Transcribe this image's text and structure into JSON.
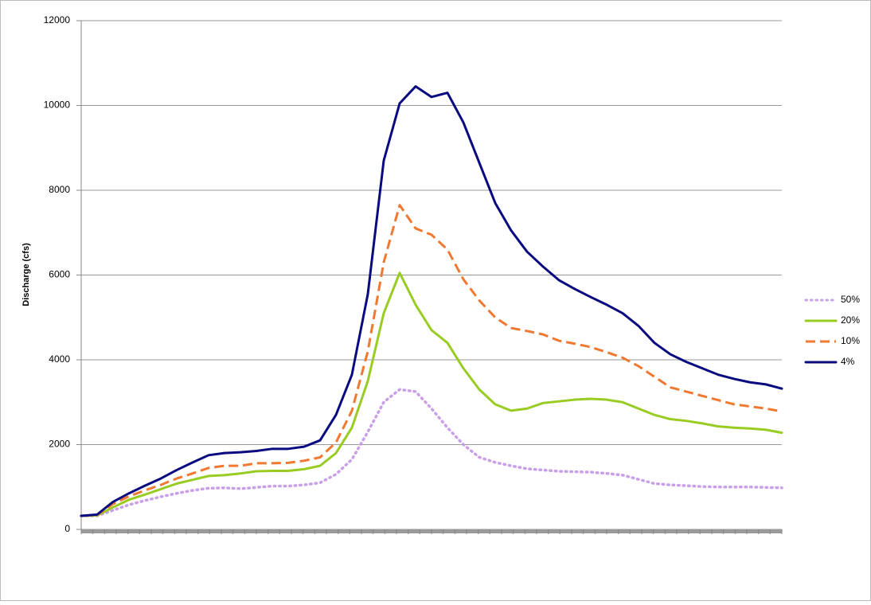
{
  "chart_data": {
    "type": "line",
    "y_label": "Discharge (cfs)",
    "categories": [
      null,
      null,
      null,
      null,
      null,
      null,
      null,
      null,
      null,
      null,
      null,
      null,
      null,
      null,
      null,
      null,
      null,
      null,
      null,
      null,
      null,
      null,
      null,
      null,
      null,
      null,
      null,
      null,
      null,
      null,
      null,
      null,
      null,
      null,
      null,
      null,
      null,
      null,
      null,
      null,
      null,
      null,
      null,
      null,
      null
    ],
    "ylim": [
      0,
      12000
    ],
    "yticks": [
      0,
      2000,
      4000,
      6000,
      8000,
      10000,
      12000
    ],
    "grid": true,
    "legend": "right",
    "series": [
      {
        "name": "50%",
        "color": "#c9a0e8",
        "line_style": "dotted",
        "values": [
          320,
          320,
          450,
          580,
          680,
          770,
          850,
          920,
          970,
          980,
          960,
          990,
          1020,
          1020,
          1050,
          1100,
          1300,
          1650,
          2300,
          3000,
          3300,
          3250,
          2850,
          2400,
          2000,
          1700,
          1580,
          1500,
          1430,
          1400,
          1370,
          1360,
          1350,
          1320,
          1280,
          1180,
          1080,
          1050,
          1030,
          1010,
          1000,
          1000,
          1000,
          990,
          980
        ]
      },
      {
        "name": "20%",
        "color": "#99cc22",
        "line_style": "solid",
        "values": [
          320,
          330,
          520,
          700,
          820,
          950,
          1080,
          1170,
          1260,
          1280,
          1320,
          1370,
          1380,
          1380,
          1420,
          1500,
          1800,
          2400,
          3500,
          5100,
          6050,
          5300,
          4700,
          4400,
          3800,
          3300,
          2950,
          2800,
          2850,
          2980,
          3020,
          3060,
          3080,
          3060,
          3000,
          2850,
          2700,
          2600,
          2560,
          2500,
          2430,
          2400,
          2380,
          2350,
          2280
        ]
      },
      {
        "name": "10%",
        "color": "#f07830",
        "line_style": "dashed",
        "values": [
          320,
          340,
          600,
          780,
          920,
          1050,
          1200,
          1320,
          1450,
          1500,
          1500,
          1560,
          1560,
          1570,
          1620,
          1700,
          2050,
          2800,
          4200,
          6300,
          7650,
          7100,
          6950,
          6600,
          5900,
          5400,
          5000,
          4750,
          4680,
          4600,
          4450,
          4380,
          4300,
          4180,
          4050,
          3850,
          3600,
          3350,
          3250,
          3150,
          3050,
          2950,
          2900,
          2850,
          2780
        ]
      },
      {
        "name": "4%",
        "color": "#0a0a80",
        "line_style": "solid",
        "values": [
          320,
          350,
          650,
          850,
          1030,
          1200,
          1400,
          1580,
          1750,
          1800,
          1820,
          1850,
          1900,
          1900,
          1950,
          2100,
          2700,
          3650,
          5550,
          8700,
          10050,
          10450,
          10200,
          10300,
          9600,
          8650,
          7700,
          7050,
          6550,
          6200,
          5880,
          5670,
          5480,
          5300,
          5100,
          4800,
          4400,
          4130,
          3950,
          3800,
          3650,
          3550,
          3470,
          3420,
          3320
        ]
      }
    ]
  }
}
